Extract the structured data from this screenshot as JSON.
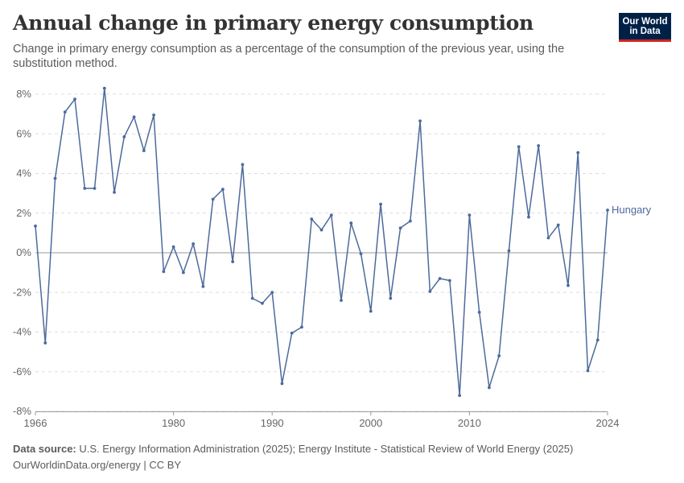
{
  "header": {
    "title": "Annual change in primary energy consumption",
    "subtitle": "Change in primary energy consumption as a percentage of the consumption of the previous year, using the substitution method.",
    "logo_line1": "Our World",
    "logo_line2": "in Data"
  },
  "footer": {
    "source_label": "Data source:",
    "source_text": "U.S. Energy Information Administration (2025); Energy Institute - Statistical Review of World Energy (2025)",
    "link_text": "OurWorldinData.org/energy | CC BY"
  },
  "colors": {
    "series": "#4c6a9c",
    "grid": "#dddddd",
    "zero_line": "#999999",
    "text": "#666666"
  },
  "chart_data": {
    "type": "line",
    "title": "Annual change in primary energy consumption",
    "ylim": [
      -8,
      8
    ],
    "xlim": [
      1966,
      2024
    ],
    "y_ticks": [
      -8,
      -6,
      -4,
      -2,
      0,
      2,
      4,
      6,
      8
    ],
    "y_tick_labels": [
      "-8%",
      "-6%",
      "-4%",
      "-2%",
      "0%",
      "2%",
      "4%",
      "6%",
      "8%"
    ],
    "x_ticks": [
      1966,
      1980,
      1990,
      2000,
      2010,
      2024
    ],
    "x_tick_labels": [
      "1966",
      "1980",
      "1990",
      "2000",
      "2010",
      "2024"
    ],
    "grid": true,
    "series": [
      {
        "name": "Hungary",
        "x": [
          1966,
          1967,
          1968,
          1969,
          1970,
          1971,
          1972,
          1973,
          1974,
          1975,
          1976,
          1977,
          1978,
          1979,
          1980,
          1981,
          1982,
          1983,
          1984,
          1985,
          1986,
          1987,
          1988,
          1989,
          1990,
          1991,
          1992,
          1993,
          1994,
          1995,
          1996,
          1997,
          1998,
          1999,
          2000,
          2001,
          2002,
          2003,
          2004,
          2005,
          2006,
          2007,
          2008,
          2009,
          2010,
          2011,
          2012,
          2013,
          2014,
          2015,
          2016,
          2017,
          2018,
          2019,
          2020,
          2021,
          2022,
          2023,
          2024
        ],
        "values": [
          1.35,
          -4.55,
          3.75,
          7.1,
          7.75,
          3.25,
          3.25,
          8.3,
          3.05,
          5.85,
          6.85,
          5.15,
          6.95,
          -0.95,
          0.3,
          -1.0,
          0.45,
          -1.7,
          2.7,
          3.2,
          -0.45,
          4.45,
          -2.3,
          -2.55,
          -2.0,
          -6.6,
          -4.05,
          -3.75,
          1.7,
          1.15,
          1.9,
          -2.4,
          1.5,
          -0.05,
          -2.95,
          2.45,
          -2.3,
          1.25,
          1.6,
          6.65,
          -1.95,
          -1.3,
          -1.4,
          -7.2,
          1.9,
          -3.0,
          -6.8,
          -5.2,
          0.1,
          5.35,
          1.8,
          5.4,
          0.75,
          1.4,
          -1.65,
          5.05,
          -5.95,
          -4.4,
          2.15
        ]
      }
    ]
  }
}
